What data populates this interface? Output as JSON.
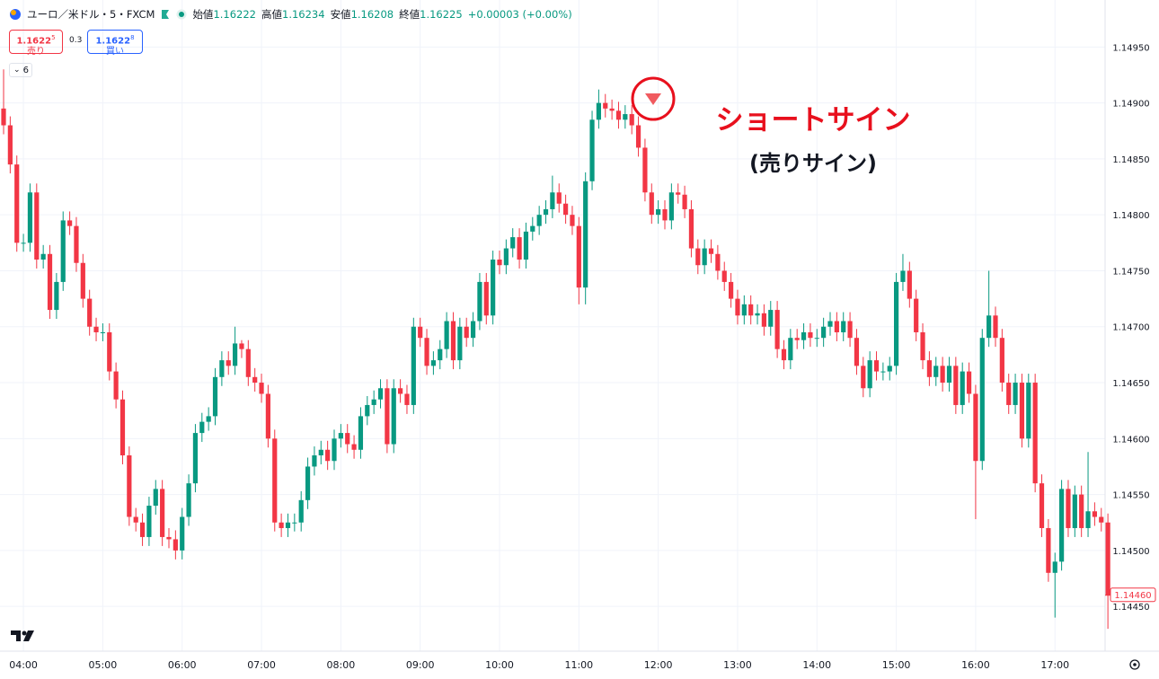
{
  "header": {
    "symbol": "ユーロ／米ドル・5・FXCM",
    "ohlc": [
      {
        "label": "始値",
        "value": "1.16222"
      },
      {
        "label": "高値",
        "value": "1.16234"
      },
      {
        "label": "安値",
        "value": "1.16208"
      },
      {
        "label": "終値",
        "value": "1.16225"
      }
    ],
    "change": "+0.00003 (+0.00%)",
    "sell": {
      "price": "1.1622",
      "pip": "5",
      "label": "売り"
    },
    "spread": "0.3",
    "buy": {
      "price": "1.1622",
      "pip": "8",
      "label": "買い"
    },
    "indicators": "6"
  },
  "annotation": {
    "title": "ショートサイン",
    "subtitle": "(売りサイン)"
  },
  "chart_data": {
    "type": "candlestick",
    "up_color": "#089981",
    "down_color": "#f23645",
    "grid": true,
    "ylim": [
      1.1441,
      1.14992
    ],
    "yticks": [
      {
        "value": 1.1495,
        "label": "1.14950"
      },
      {
        "value": 1.149,
        "label": "1.14900"
      },
      {
        "value": 1.1485,
        "label": "1.14850"
      },
      {
        "value": 1.148,
        "label": "1.14800"
      },
      {
        "value": 1.1475,
        "label": "1.14750"
      },
      {
        "value": 1.147,
        "label": "1.14700"
      },
      {
        "value": 1.1465,
        "label": "1.14650"
      },
      {
        "value": 1.146,
        "label": "1.14600"
      },
      {
        "value": 1.1455,
        "label": "1.14550"
      },
      {
        "value": 1.145,
        "label": "1.14500"
      },
      {
        "value": 1.1445,
        "label": "1.14450"
      }
    ],
    "xticks": [
      "04:00",
      "05:00",
      "06:00",
      "07:00",
      "08:00",
      "09:00",
      "10:00",
      "11:00",
      "12:00",
      "13:00",
      "14:00",
      "15:00",
      "16:00",
      "17:00"
    ],
    "last_price": {
      "value": 1.1446,
      "label": "1.14460"
    },
    "x": [
      "03:45",
      "03:50",
      "03:55",
      "04:00",
      "04:05",
      "04:10",
      "04:15",
      "04:20",
      "04:25",
      "04:30",
      "04:35",
      "04:40",
      "04:45",
      "04:50",
      "04:55",
      "05:00",
      "05:05",
      "05:10",
      "05:15",
      "05:20",
      "05:25",
      "05:30",
      "05:35",
      "05:40",
      "05:45",
      "05:50",
      "05:55",
      "06:00",
      "06:05",
      "06:10",
      "06:15",
      "06:20",
      "06:25",
      "06:30",
      "06:35",
      "06:40",
      "06:45",
      "06:50",
      "06:55",
      "07:00",
      "07:05",
      "07:10",
      "07:15",
      "07:20",
      "07:25",
      "07:30",
      "07:35",
      "07:40",
      "07:45",
      "07:50",
      "07:55",
      "08:00",
      "08:05",
      "08:10",
      "08:15",
      "08:20",
      "08:25",
      "08:30",
      "08:35",
      "08:40",
      "08:45",
      "08:50",
      "08:55",
      "09:00",
      "09:05",
      "09:10",
      "09:15",
      "09:20",
      "09:25",
      "09:30",
      "09:35",
      "09:40",
      "09:45",
      "09:50",
      "09:55",
      "10:00",
      "10:05",
      "10:10",
      "10:15",
      "10:20",
      "10:25",
      "10:30",
      "10:35",
      "10:40",
      "10:45",
      "10:50",
      "10:55",
      "11:00",
      "11:05",
      "11:10",
      "11:15",
      "11:20",
      "11:25",
      "11:30",
      "11:35",
      "11:40",
      "11:45",
      "11:50",
      "11:55",
      "12:00",
      "12:05",
      "12:10",
      "12:15",
      "12:20",
      "12:25",
      "12:30",
      "12:35",
      "12:40",
      "12:45",
      "12:50",
      "12:55",
      "13:00",
      "13:05",
      "13:10",
      "13:15",
      "13:20",
      "13:25",
      "13:30",
      "13:35",
      "13:40",
      "13:45",
      "13:50",
      "13:55",
      "14:00",
      "14:05",
      "14:10",
      "14:15",
      "14:20",
      "14:25",
      "14:30",
      "14:35",
      "14:40",
      "14:45",
      "14:50",
      "14:55",
      "15:00",
      "15:05",
      "15:10",
      "15:15",
      "15:20",
      "15:25",
      "15:30",
      "15:35",
      "15:40",
      "15:45",
      "15:50",
      "15:55",
      "16:00",
      "16:05",
      "16:10",
      "16:15",
      "16:20",
      "16:25",
      "16:30",
      "16:35",
      "16:40",
      "16:45",
      "16:50",
      "16:55",
      "17:00",
      "17:05",
      "17:10",
      "17:15",
      "17:20",
      "17:25",
      "17:30",
      "17:35",
      "17:40"
    ],
    "open": [
      1.14895,
      1.1488,
      1.14845,
      1.14775,
      1.14775,
      1.1482,
      1.1476,
      1.14765,
      1.14715,
      1.1474,
      1.14795,
      1.1479,
      1.14757,
      1.14725,
      1.147,
      1.14695,
      1.14695,
      1.1466,
      1.14635,
      1.14585,
      1.1453,
      1.14525,
      1.14512,
      1.1454,
      1.14555,
      1.14512,
      1.1451,
      1.145,
      1.1453,
      1.1456,
      1.14605,
      1.14615,
      1.1462,
      1.14655,
      1.1467,
      1.14665,
      1.14685,
      1.1468,
      1.14655,
      1.1465,
      1.1464,
      1.146,
      1.14525,
      1.1452,
      1.14525,
      1.14525,
      1.14545,
      1.14575,
      1.14585,
      1.1459,
      1.1458,
      1.146,
      1.14605,
      1.14595,
      1.1459,
      1.1462,
      1.1463,
      1.14635,
      1.14645,
      1.14595,
      1.14645,
      1.1464,
      1.1463,
      1.147,
      1.1469,
      1.14665,
      1.1467,
      1.1468,
      1.14705,
      1.1467,
      1.147,
      1.1469,
      1.14705,
      1.1474,
      1.1471,
      1.1476,
      1.14755,
      1.1477,
      1.1478,
      1.1476,
      1.14785,
      1.1479,
      1.148,
      1.14805,
      1.1482,
      1.1481,
      1.148,
      1.1479,
      1.14735,
      1.1483,
      1.14885,
      1.149,
      1.14895,
      1.14893,
      1.14885,
      1.1489,
      1.1488,
      1.1486,
      1.1482,
      1.148,
      1.14805,
      1.14795,
      1.1482,
      1.14818,
      1.14805,
      1.1477,
      1.14755,
      1.1477,
      1.14765,
      1.1475,
      1.1474,
      1.14725,
      1.1471,
      1.1472,
      1.1471,
      1.14712,
      1.147,
      1.14715,
      1.1468,
      1.1467,
      1.1469,
      1.14688,
      1.14695,
      1.1469,
      1.1469,
      1.147,
      1.14705,
      1.14695,
      1.14705,
      1.1469,
      1.14665,
      1.14645,
      1.1467,
      1.1466,
      1.1466,
      1.14665,
      1.1474,
      1.1475,
      1.14725,
      1.14695,
      1.1467,
      1.14655,
      1.14665,
      1.1465,
      1.14665,
      1.1463,
      1.1466,
      1.1464,
      1.1458,
      1.1469,
      1.1471,
      1.1469,
      1.1465,
      1.1463,
      1.1465,
      1.146,
      1.1465,
      1.1456,
      1.1452,
      1.1448,
      1.1449,
      1.14555,
      1.1452,
      1.1455,
      1.1452,
      1.14535,
      1.1453,
      1.14525
    ],
    "high": [
      1.1493,
      1.14888,
      1.14853,
      1.14783,
      1.14828,
      1.14828,
      1.14773,
      1.14773,
      1.14748,
      1.14803,
      1.14803,
      1.14798,
      1.14765,
      1.14733,
      1.14708,
      1.14703,
      1.14703,
      1.14668,
      1.14643,
      1.14593,
      1.14538,
      1.14533,
      1.14548,
      1.14563,
      1.14563,
      1.1452,
      1.14518,
      1.14538,
      1.14568,
      1.14613,
      1.14623,
      1.14628,
      1.14663,
      1.14678,
      1.14678,
      1.147,
      1.14688,
      1.14688,
      1.14663,
      1.14658,
      1.14648,
      1.14608,
      1.14533,
      1.14533,
      1.14533,
      1.14553,
      1.14583,
      1.14593,
      1.14598,
      1.14598,
      1.14608,
      1.14613,
      1.14613,
      1.14603,
      1.14628,
      1.14638,
      1.14643,
      1.14653,
      1.14653,
      1.14653,
      1.14653,
      1.14648,
      1.14708,
      1.14708,
      1.14698,
      1.14678,
      1.14688,
      1.14713,
      1.14713,
      1.14708,
      1.14708,
      1.14713,
      1.14748,
      1.14748,
      1.14768,
      1.14768,
      1.14778,
      1.14788,
      1.14788,
      1.14793,
      1.14798,
      1.14808,
      1.14813,
      1.14835,
      1.14828,
      1.14818,
      1.14808,
      1.14798,
      1.14838,
      1.14893,
      1.14912,
      1.14908,
      1.14903,
      1.14901,
      1.14898,
      1.14898,
      1.14888,
      1.14868,
      1.14828,
      1.14813,
      1.14813,
      1.14828,
      1.14828,
      1.14826,
      1.14813,
      1.14778,
      1.14778,
      1.14778,
      1.14773,
      1.14758,
      1.14748,
      1.14733,
      1.14728,
      1.14728,
      1.1472,
      1.1472,
      1.14723,
      1.14723,
      1.14688,
      1.14698,
      1.14698,
      1.14703,
      1.14703,
      1.14698,
      1.14708,
      1.14713,
      1.14713,
      1.14713,
      1.14713,
      1.14698,
      1.14673,
      1.14678,
      1.14678,
      1.14668,
      1.14673,
      1.14748,
      1.14765,
      1.14758,
      1.14733,
      1.14703,
      1.14678,
      1.14673,
      1.14673,
      1.14673,
      1.14673,
      1.14668,
      1.14668,
      1.14648,
      1.14698,
      1.1475,
      1.14718,
      1.14698,
      1.14658,
      1.14658,
      1.14658,
      1.14658,
      1.14658,
      1.14568,
      1.14528,
      1.14498,
      1.14563,
      1.14563,
      1.14558,
      1.14558,
      1.14588,
      1.14543,
      1.14538,
      1.14533
    ],
    "low": [
      1.14872,
      1.14837,
      1.14767,
      1.14767,
      1.14767,
      1.14752,
      1.14752,
      1.14707,
      1.14707,
      1.14732,
      1.14782,
      1.14749,
      1.14717,
      1.14692,
      1.14687,
      1.14687,
      1.14652,
      1.14627,
      1.14577,
      1.14522,
      1.14517,
      1.14504,
      1.14504,
      1.14532,
      1.14504,
      1.14502,
      1.14492,
      1.14492,
      1.14522,
      1.14552,
      1.14597,
      1.14607,
      1.14612,
      1.14647,
      1.14657,
      1.14657,
      1.14672,
      1.14647,
      1.14642,
      1.14632,
      1.14592,
      1.14517,
      1.14512,
      1.14512,
      1.14517,
      1.14517,
      1.14537,
      1.14567,
      1.14577,
      1.14572,
      1.14572,
      1.14592,
      1.14587,
      1.14582,
      1.14582,
      1.14612,
      1.14622,
      1.14627,
      1.14587,
      1.14587,
      1.14632,
      1.14622,
      1.14622,
      1.14682,
      1.14657,
      1.14657,
      1.14662,
      1.14672,
      1.14662,
      1.14662,
      1.14682,
      1.14682,
      1.14697,
      1.14702,
      1.14702,
      1.14747,
      1.14747,
      1.14762,
      1.14752,
      1.14752,
      1.14777,
      1.14782,
      1.14792,
      1.14797,
      1.14802,
      1.14792,
      1.14782,
      1.1472,
      1.1472,
      1.14822,
      1.14877,
      1.14887,
      1.14885,
      1.14877,
      1.14877,
      1.14872,
      1.14852,
      1.14812,
      1.14792,
      1.14792,
      1.14787,
      1.14787,
      1.1481,
      1.14797,
      1.14762,
      1.14747,
      1.14747,
      1.14757,
      1.14742,
      1.14732,
      1.14717,
      1.14702,
      1.14702,
      1.14702,
      1.14702,
      1.14692,
      1.14692,
      1.14672,
      1.14662,
      1.14662,
      1.1468,
      1.1468,
      1.14682,
      1.14682,
      1.14682,
      1.14692,
      1.14687,
      1.14687,
      1.14682,
      1.14657,
      1.14637,
      1.14637,
      1.14652,
      1.14652,
      1.14652,
      1.14657,
      1.14732,
      1.14717,
      1.14687,
      1.14662,
      1.14647,
      1.14647,
      1.14642,
      1.14642,
      1.14622,
      1.14622,
      1.14632,
      1.14528,
      1.14572,
      1.14682,
      1.14682,
      1.14642,
      1.14622,
      1.14622,
      1.14592,
      1.14592,
      1.14552,
      1.14512,
      1.14472,
      1.1444,
      1.14482,
      1.14512,
      1.14512,
      1.14512,
      1.14512,
      1.14522,
      1.14517,
      1.1443
    ],
    "close": [
      1.1488,
      1.14845,
      1.14775,
      1.14775,
      1.1482,
      1.1476,
      1.14765,
      1.14715,
      1.1474,
      1.14795,
      1.1479,
      1.14757,
      1.14725,
      1.147,
      1.14695,
      1.14695,
      1.1466,
      1.14635,
      1.14585,
      1.1453,
      1.14525,
      1.14512,
      1.1454,
      1.14555,
      1.14512,
      1.1451,
      1.145,
      1.1453,
      1.1456,
      1.14605,
      1.14615,
      1.1462,
      1.14655,
      1.1467,
      1.14665,
      1.14685,
      1.1468,
      1.14655,
      1.1465,
      1.1464,
      1.146,
      1.14525,
      1.1452,
      1.14525,
      1.14525,
      1.14545,
      1.14575,
      1.14585,
      1.1459,
      1.1458,
      1.146,
      1.14605,
      1.14595,
      1.1459,
      1.1462,
      1.1463,
      1.14635,
      1.14645,
      1.14595,
      1.14645,
      1.1464,
      1.1463,
      1.147,
      1.1469,
      1.14665,
      1.1467,
      1.1468,
      1.14705,
      1.1467,
      1.147,
      1.1469,
      1.14705,
      1.1474,
      1.1471,
      1.1476,
      1.14755,
      1.1477,
      1.1478,
      1.1476,
      1.14785,
      1.1479,
      1.148,
      1.14805,
      1.1482,
      1.1481,
      1.148,
      1.1479,
      1.14735,
      1.1483,
      1.14885,
      1.149,
      1.14895,
      1.14893,
      1.14885,
      1.1489,
      1.1488,
      1.1486,
      1.1482,
      1.148,
      1.14805,
      1.14795,
      1.1482,
      1.14818,
      1.14805,
      1.1477,
      1.14755,
      1.1477,
      1.14765,
      1.1475,
      1.1474,
      1.14725,
      1.1471,
      1.1472,
      1.1471,
      1.14712,
      1.147,
      1.14715,
      1.1468,
      1.1467,
      1.1469,
      1.14688,
      1.14695,
      1.1469,
      1.1469,
      1.147,
      1.14705,
      1.14695,
      1.14705,
      1.1469,
      1.14665,
      1.14645,
      1.1467,
      1.1466,
      1.1466,
      1.14665,
      1.1474,
      1.1475,
      1.14725,
      1.14695,
      1.1467,
      1.14655,
      1.14665,
      1.1465,
      1.14665,
      1.1463,
      1.1466,
      1.1464,
      1.1458,
      1.1469,
      1.1471,
      1.1469,
      1.1465,
      1.1463,
      1.1465,
      1.146,
      1.1465,
      1.1456,
      1.1452,
      1.1448,
      1.1449,
      1.14555,
      1.1452,
      1.1455,
      1.1452,
      1.14535,
      1.1453,
      1.14525,
      1.1446
    ]
  }
}
